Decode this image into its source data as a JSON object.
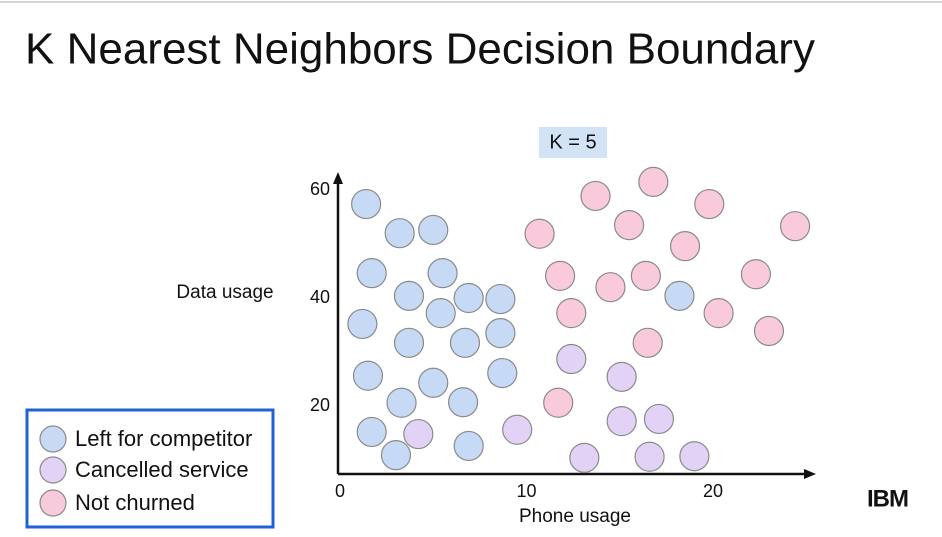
{
  "title": "K Nearest Neighbors Decision Boundary",
  "logo": "IBM",
  "chart_data": {
    "type": "scatter",
    "annotation": "K = 5",
    "x_label": "Phone usage",
    "y_label": "Data usage",
    "xlim": [
      0,
      25.5
    ],
    "ylim": [
      7.5,
      62.5
    ],
    "xticks": [
      0,
      10,
      20
    ],
    "yticks": [
      20,
      40,
      60
    ],
    "legend": "lower-left",
    "series": [
      {
        "name": "Left for competitor",
        "color": "#c6daf6",
        "x": [
          1.4,
          3.2,
          5.0,
          1.7,
          5.5,
          3.7,
          5.4,
          6.9,
          8.6,
          1.2,
          3.7,
          6.7,
          8.6,
          1.5,
          5.0,
          8.7,
          3.3,
          6.6,
          1.7,
          3.0,
          6.9,
          18.2
        ],
        "y": [
          57.4,
          52.0,
          52.6,
          44.6,
          44.6,
          40.4,
          37.2,
          40.0,
          39.8,
          35.2,
          31.7,
          31.7,
          33.5,
          25.6,
          24.3,
          26.1,
          20.6,
          20.7,
          15.2,
          10.9,
          12.6,
          40.4
        ]
      },
      {
        "name": "Cancelled service",
        "color": "#e2d3f6",
        "x": [
          4.2,
          9.5,
          12.4,
          15.1,
          15.1,
          17.1,
          13.1,
          16.6,
          19.0
        ],
        "y": [
          14.8,
          15.6,
          28.7,
          25.4,
          17.2,
          17.6,
          10.4,
          10.6,
          10.7
        ]
      },
      {
        "name": "Not churned",
        "color": "#f9cadb",
        "x": [
          13.7,
          16.8,
          19.8,
          15.5,
          10.7,
          18.5,
          24.4,
          11.8,
          14.5,
          16.4,
          22.3,
          12.4,
          20.3,
          23.0,
          16.5,
          11.7
        ],
        "y": [
          58.9,
          61.5,
          57.4,
          53.5,
          51.9,
          49.6,
          53.3,
          44.1,
          42.0,
          44.1,
          44.4,
          37.2,
          37.2,
          33.9,
          31.7,
          20.6
        ]
      }
    ]
  }
}
